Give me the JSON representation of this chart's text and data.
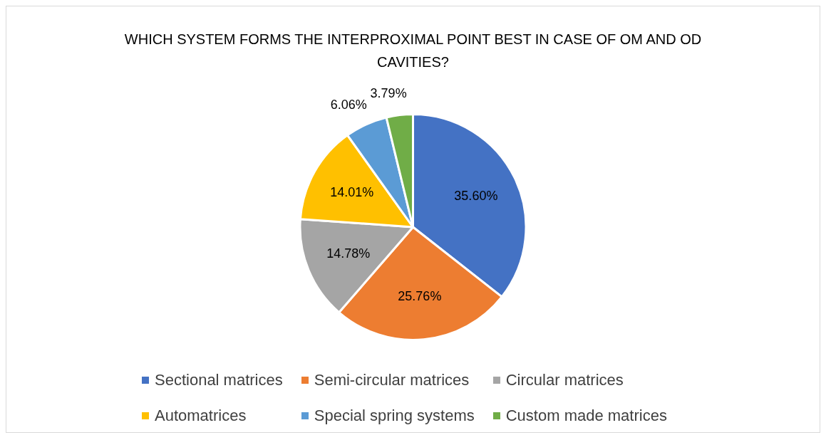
{
  "chart_data": {
    "type": "pie",
    "title": "WHICH SYSTEM FORMS THE INTERPROXIMAL POINT BEST IN CASE OF OM AND OD CAVITIES?",
    "categories": [
      "Sectional matrices",
      "Semi-circular matrices",
      "Circular matrices",
      "Automatrices",
      "Special spring systems",
      "Custom made matrices"
    ],
    "values": [
      35.6,
      25.76,
      14.78,
      14.01,
      6.06,
      3.79
    ],
    "colors": [
      "#4472c4",
      "#ed7d31",
      "#a5a5a5",
      "#ffc000",
      "#5b9bd5",
      "#70ad47"
    ],
    "value_labels": [
      "35.60%",
      "25.76%",
      "14.78%",
      "14.01%",
      "6.06%",
      "3.79%"
    ],
    "legend": "bottom"
  }
}
